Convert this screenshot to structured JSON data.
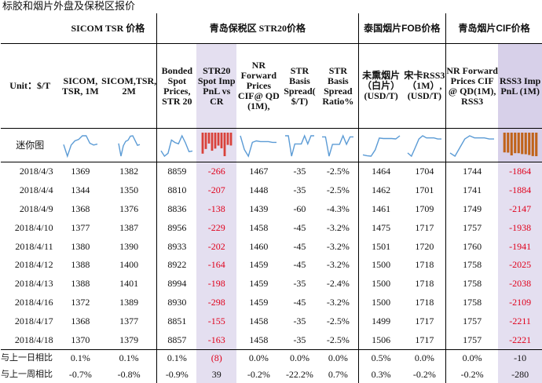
{
  "title": "标胶和烟片外盘及保税区报价",
  "groups": {
    "sicom": "SICOM TSR 价格",
    "qingdao_str20": "青岛保税区 STR20价格",
    "thai_fob": "泰国烟片FOB价格",
    "qingdao_cif": "青岛烟片CIF价格"
  },
  "unit_label": "Unit：$/T",
  "columns": [
    "SICOM, TSR, 1M",
    "SICOM,TSR, 2M",
    "Bonded Spot Prices, STR 20",
    "STR20 Spot Imp PnL vs CR",
    "NR Forward Prices CIF@ QD (1M),",
    "STR Basis Spread( $/T)",
    "STR Basis Spread Ratio%",
    "未熏烟片（白片）(USD/T)",
    "宋卡RSS3（1M）,(USD/T)",
    "NR Forward Prices CIF @ QD(1M), RSS3",
    "RSS3 Imp PnL (1M)"
  ],
  "sparkline_label": "迷你图",
  "rows": [
    {
      "date": "2018/4/3",
      "v": [
        "1369",
        "1382",
        "8859",
        "-266",
        "1467",
        "-35",
        "-2.5%",
        "1464",
        "1704",
        "1744",
        "-1864"
      ]
    },
    {
      "date": "2018/4/4",
      "v": [
        "1344",
        "1350",
        "8810",
        "-207",
        "1448",
        "-35",
        "-2.5%",
        "1462",
        "1701",
        "1741",
        "-1884"
      ]
    },
    {
      "date": "2018/4/9",
      "v": [
        "1368",
        "1376",
        "8836",
        "-138",
        "1439",
        "-60",
        "-4.3%",
        "1461",
        "1709",
        "1749",
        "-2147"
      ]
    },
    {
      "date": "2018/4/10",
      "v": [
        "1377",
        "1387",
        "8956",
        "-229",
        "1458",
        "-45",
        "-3.2%",
        "1475",
        "1717",
        "1757",
        "-1938"
      ]
    },
    {
      "date": "2018/4/11",
      "v": [
        "1380",
        "1390",
        "8933",
        "-202",
        "1460",
        "-45",
        "-3.2%",
        "1501",
        "1720",
        "1760",
        "-1941"
      ]
    },
    {
      "date": "2018/4/12",
      "v": [
        "1388",
        "1400",
        "8922",
        "-164",
        "1459",
        "-45",
        "-3.2%",
        "1500",
        "1718",
        "1758",
        "-2025"
      ]
    },
    {
      "date": "2018/4/13",
      "v": [
        "1388",
        "1401",
        "8994",
        "-198",
        "1459",
        "-35",
        "-2.4%",
        "1500",
        "1718",
        "1758",
        "-2038"
      ]
    },
    {
      "date": "2018/4/16",
      "v": [
        "1372",
        "1389",
        "8930",
        "-298",
        "1459",
        "-45",
        "-3.2%",
        "1500",
        "1718",
        "1758",
        "-2109"
      ]
    },
    {
      "date": "2018/4/17",
      "v": [
        "1368",
        "1377",
        "8851",
        "-155",
        "1458",
        "-35",
        "-2.5%",
        "1499",
        "1717",
        "1757",
        "-2211"
      ]
    },
    {
      "date": "2018/4/18",
      "v": [
        "1370",
        "1379",
        "8857",
        "-163",
        "1458",
        "-35",
        "-2.5%",
        "1506",
        "1717",
        "1757",
        "-2221"
      ]
    }
  ],
  "footer": [
    {
      "label": "与上一日相比",
      "v": [
        "0.1%",
        "0.1%",
        "0.1%",
        "(8)",
        "0.0%",
        "0.0%",
        "0.0%",
        "0.5%",
        "0.0%",
        "0.0%",
        "-10"
      ]
    },
    {
      "label": "与上一周相比",
      "v": [
        "-0.7%",
        "-0.8%",
        "-0.9%",
        "39",
        "-0.2%",
        "-22.2%",
        "0.7%",
        "0.3%",
        "-0.2%",
        "-0.2%",
        "-280"
      ]
    }
  ],
  "colors": {
    "negative": "#e0001b",
    "highlight_col": "#e4dff0",
    "spark_line": "#5b9bd5",
    "bar_str20": "#d9413a",
    "bar_rss3": "#c0631a"
  }
}
